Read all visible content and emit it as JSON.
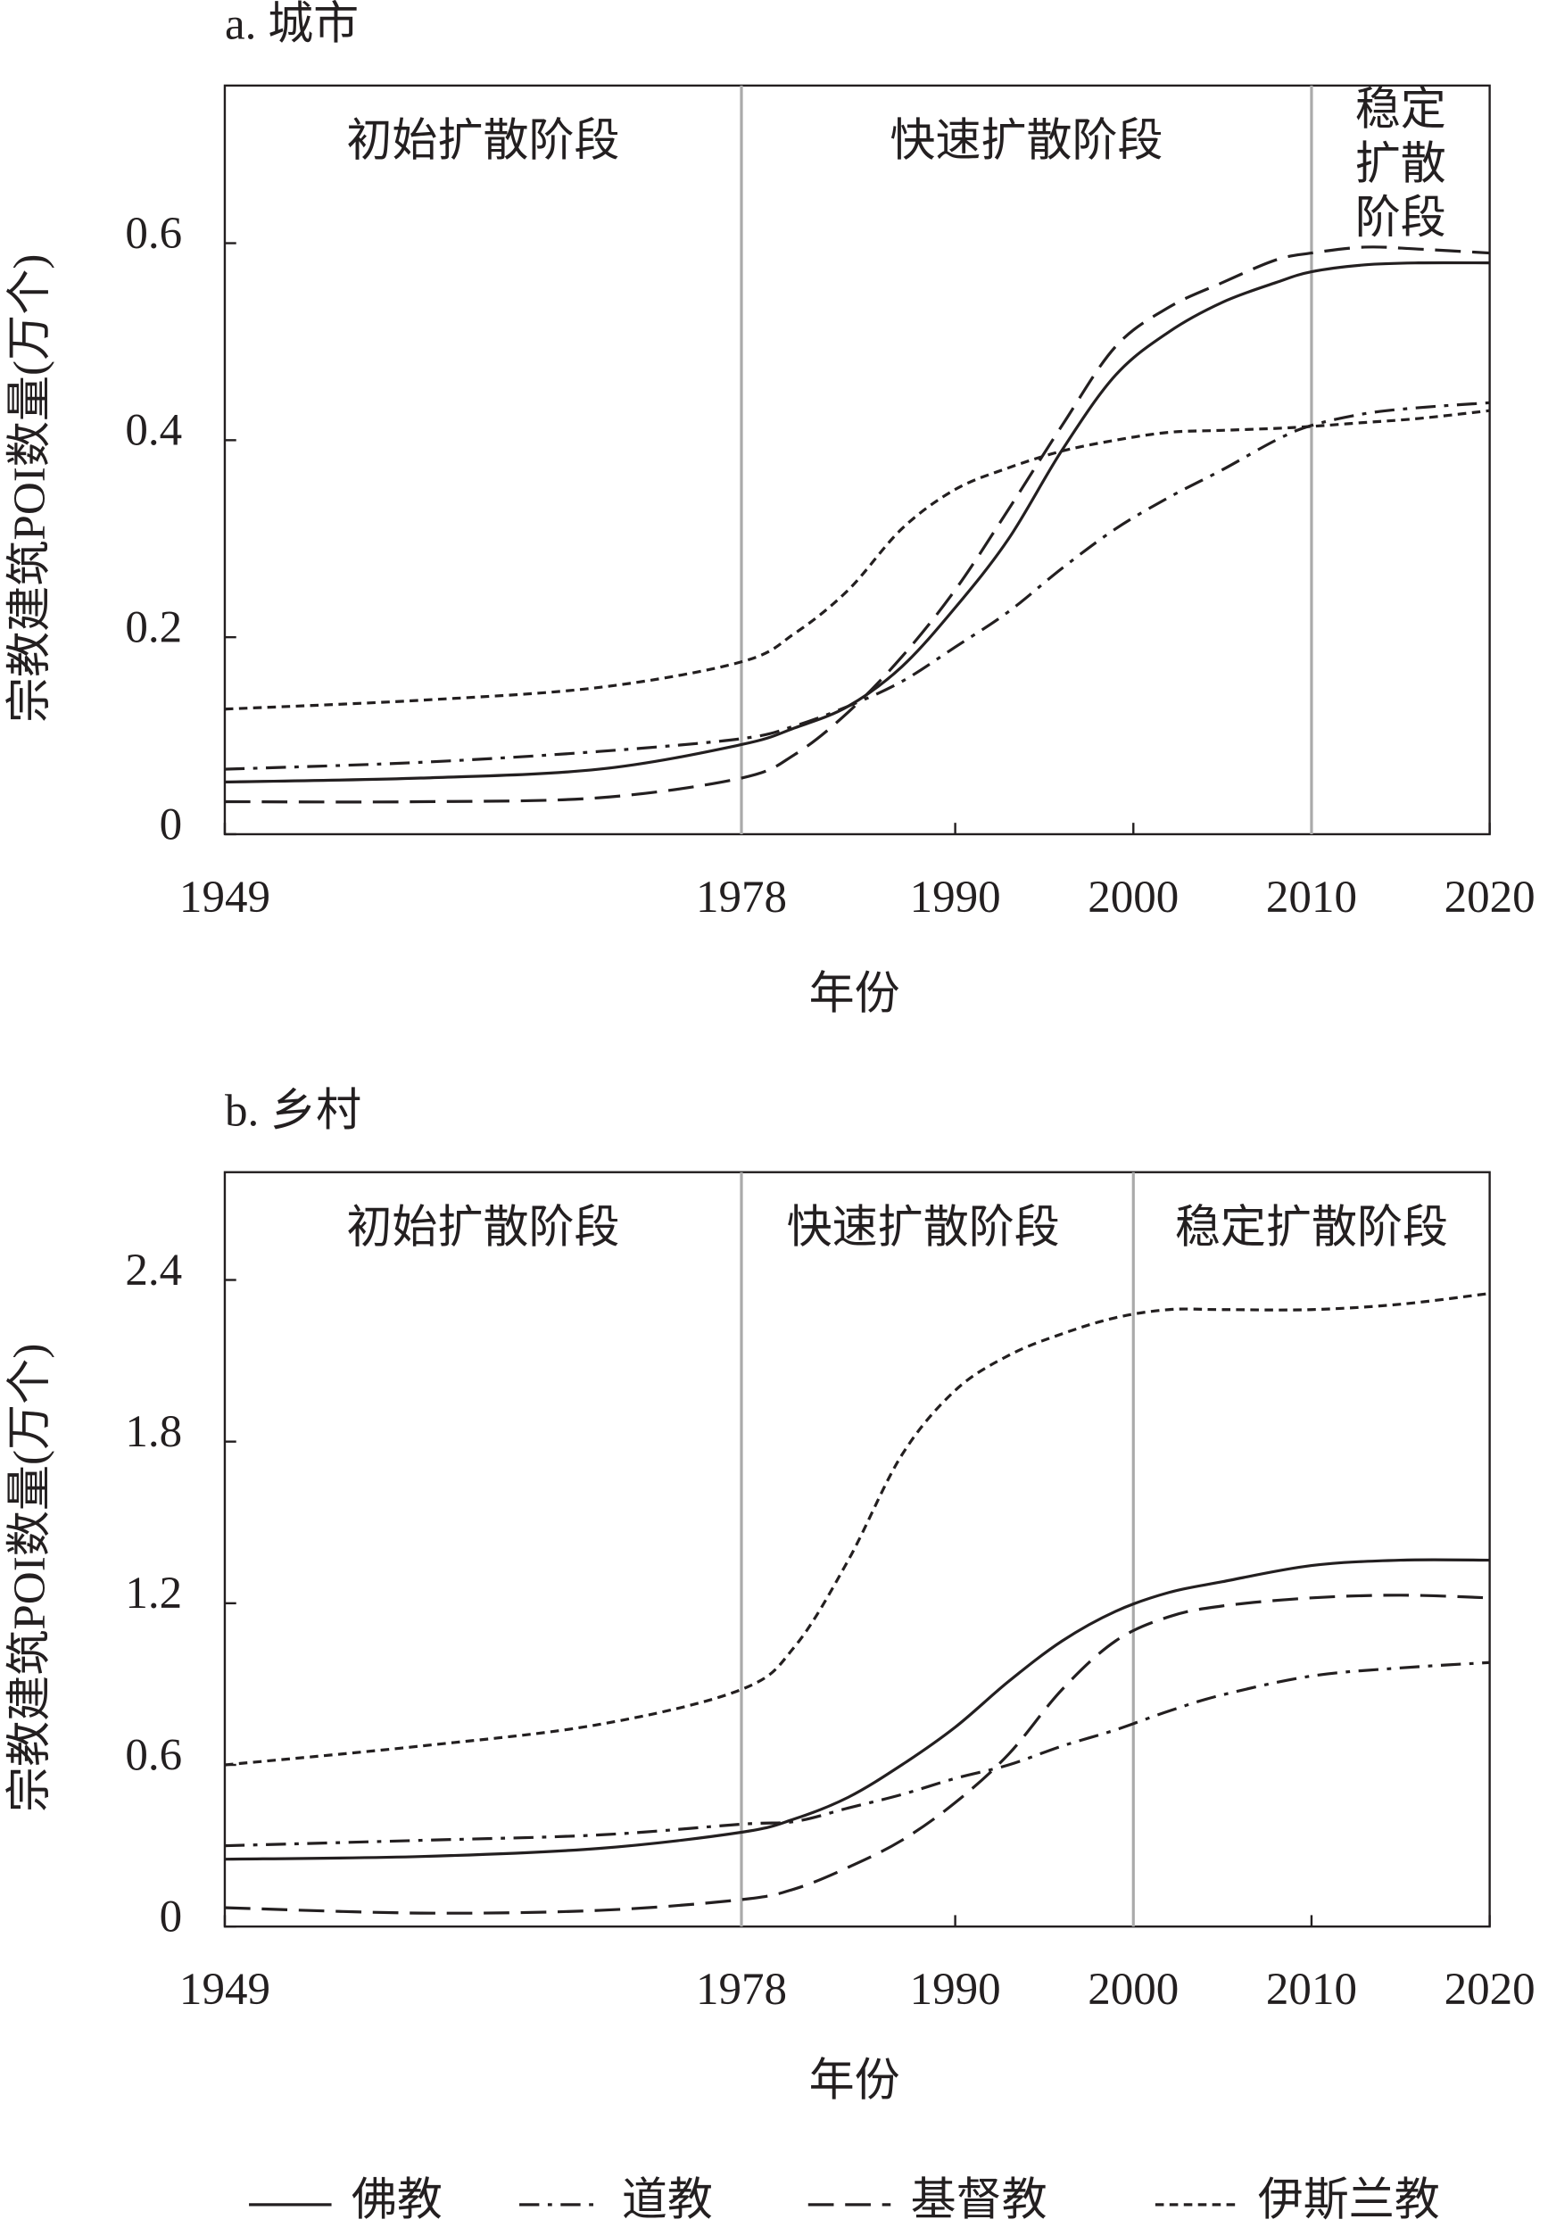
{
  "chart_data": [
    {
      "type": "line",
      "title": "a. 城市",
      "x_label": "年份",
      "y_label": "宗教建筑POI数量(万个)",
      "x": [
        1949,
        1960,
        1970,
        1978,
        1981,
        1984,
        1987,
        1990,
        1993,
        1996,
        1999,
        2002,
        2005,
        2008,
        2010,
        2013,
        2016,
        2020
      ],
      "xlim": [
        1949,
        2020
      ],
      "xticks": [
        1949,
        1978,
        1990,
        2000,
        2010,
        2020
      ],
      "ylim": [
        0,
        0.76
      ],
      "yticks": [
        0,
        0.2,
        0.4,
        0.6
      ],
      "dividers": [
        1978,
        2010
      ],
      "phases": [
        {
          "label": "初始扩散阶段"
        },
        {
          "label": "快速扩散阶段"
        },
        {
          "label_lines": [
            "稳定",
            "扩散",
            "阶段"
          ]
        }
      ],
      "series": [
        {
          "name": "佛教",
          "color": "#231f20",
          "dash": "solid",
          "values": [
            0.053,
            0.057,
            0.066,
            0.091,
            0.108,
            0.13,
            0.17,
            0.23,
            0.3,
            0.39,
            0.466,
            0.51,
            0.54,
            0.56,
            0.571,
            0.578,
            0.58,
            0.58
          ]
        },
        {
          "name": "道教",
          "color": "#231f20",
          "dash": "dashdot",
          "values": [
            0.066,
            0.073,
            0.084,
            0.097,
            0.11,
            0.13,
            0.155,
            0.19,
            0.226,
            0.27,
            0.31,
            0.342,
            0.37,
            0.4,
            0.415,
            0.427,
            0.433,
            0.438
          ]
        },
        {
          "name": "基督教",
          "color": "#231f20",
          "dash": "long",
          "values": [
            0.033,
            0.033,
            0.037,
            0.057,
            0.081,
            0.124,
            0.18,
            0.248,
            0.33,
            0.415,
            0.495,
            0.535,
            0.56,
            0.583,
            0.59,
            0.596,
            0.594,
            0.59
          ]
        },
        {
          "name": "伊斯兰教",
          "color": "#231f20",
          "dash": "short",
          "values": [
            0.127,
            0.136,
            0.149,
            0.175,
            0.204,
            0.248,
            0.31,
            0.35,
            0.372,
            0.389,
            0.4,
            0.408,
            0.41,
            0.412,
            0.414,
            0.418,
            0.422,
            0.43
          ]
        }
      ]
    },
    {
      "type": "line",
      "title": "b. 乡村",
      "x_label": "年份",
      "y_label": "宗教建筑POI数量(万个)",
      "x": [
        1949,
        1960,
        1970,
        1978,
        1981,
        1984,
        1987,
        1990,
        1993,
        1996,
        1999,
        2002,
        2005,
        2010,
        2015,
        2020
      ],
      "xlim": [
        1949,
        2020
      ],
      "xticks": [
        1949,
        1978,
        1990,
        2000,
        2010,
        2020
      ],
      "ylim": [
        0,
        2.8
      ],
      "yticks": [
        0,
        0.6,
        1.2,
        1.8,
        2.4
      ],
      "dividers": [
        1978,
        2000
      ],
      "phases": [
        {
          "label": "初始扩散阶段"
        },
        {
          "label": "快速扩散阶段"
        },
        {
          "label": "稳定扩散阶段"
        }
      ],
      "series": [
        {
          "name": "佛教",
          "color": "#231f20",
          "dash": "solid",
          "values": [
            0.25,
            0.26,
            0.29,
            0.35,
            0.4,
            0.48,
            0.6,
            0.74,
            0.91,
            1.06,
            1.17,
            1.24,
            1.28,
            1.34,
            1.36,
            1.36
          ]
        },
        {
          "name": "道教",
          "color": "#231f20",
          "dash": "dashdot",
          "values": [
            0.3,
            0.32,
            0.34,
            0.38,
            0.39,
            0.44,
            0.49,
            0.55,
            0.6,
            0.67,
            0.73,
            0.8,
            0.86,
            0.93,
            0.96,
            0.98
          ]
        },
        {
          "name": "基督教",
          "color": "#231f20",
          "dash": "long",
          "values": [
            0.07,
            0.05,
            0.06,
            0.1,
            0.14,
            0.22,
            0.32,
            0.46,
            0.64,
            0.88,
            1.06,
            1.15,
            1.19,
            1.22,
            1.23,
            1.22
          ]
        },
        {
          "name": "伊斯兰教",
          "color": "#231f20",
          "dash": "short",
          "values": [
            0.6,
            0.67,
            0.75,
            0.88,
            1.04,
            1.36,
            1.75,
            1.99,
            2.12,
            2.2,
            2.26,
            2.29,
            2.29,
            2.29,
            2.31,
            2.35
          ]
        }
      ]
    }
  ]
}
